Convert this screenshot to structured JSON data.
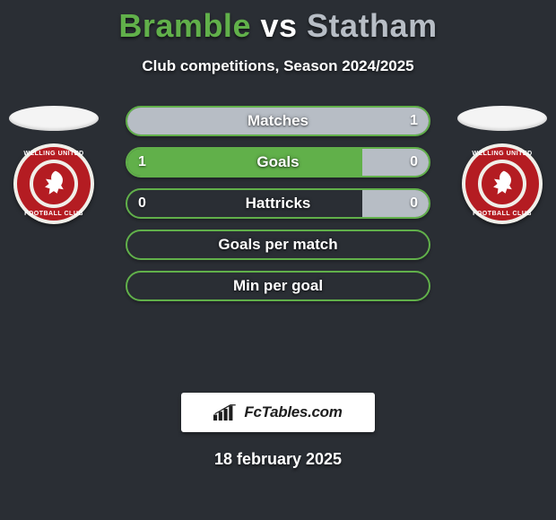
{
  "title_left": "Bramble",
  "title_vs": "vs",
  "title_right": "Statham",
  "subtitle": "Club competitions, Season 2024/2025",
  "left_color": "#61b04a",
  "right_color": "#b7bdc5",
  "border_color": "#61b04a",
  "background_color": "#2a2e34",
  "text_color": "#ffffff",
  "crest": {
    "ring_color": "#b41c22",
    "inner_color": "#b41c22",
    "top_text": "WELLING UNITED",
    "bottom_text": "FOOTBALL CLUB"
  },
  "bars": [
    {
      "label": "Matches",
      "left_val": "",
      "right_val": "1",
      "left_w": 0,
      "right_w": 100
    },
    {
      "label": "Goals",
      "left_val": "1",
      "right_val": "0",
      "left_w": 100,
      "right_w": 22
    },
    {
      "label": "Hattricks",
      "left_val": "0",
      "right_val": "0",
      "left_w": 0,
      "right_w": 22
    },
    {
      "label": "Goals per match",
      "left_val": "",
      "right_val": "",
      "left_w": 0,
      "right_w": 0
    },
    {
      "label": "Min per goal",
      "left_val": "",
      "right_val": "",
      "left_w": 0,
      "right_w": 0
    }
  ],
  "brand": "FcTables.com",
  "date": "18 february 2025"
}
